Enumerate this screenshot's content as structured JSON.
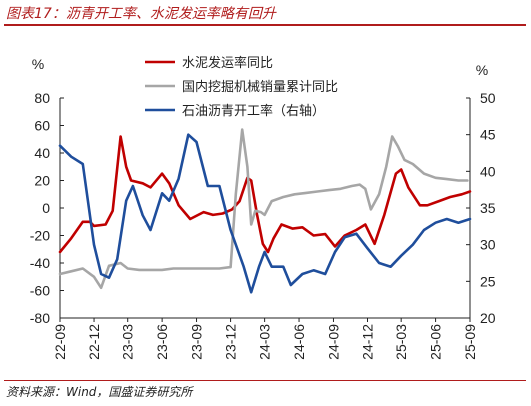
{
  "title": "图表17：沥青开工率、水泥发运率略有回升",
  "source": "资料来源：Wind，国盛证券研究所",
  "chart_data": {
    "type": "line",
    "left_axis": {
      "unit": "%",
      "ylim": [
        -80,
        80
      ],
      "ticks": [
        -80,
        -60,
        -40,
        -20,
        0,
        20,
        40,
        60,
        80
      ]
    },
    "right_axis": {
      "unit": "%",
      "ylim": [
        20,
        50
      ],
      "ticks": [
        20,
        25,
        30,
        35,
        40,
        45,
        50
      ]
    },
    "x_range": [
      "2022-09-01",
      "2025-09-01"
    ],
    "x_ticks": [
      "22-09",
      "22-12",
      "23-03",
      "23-06",
      "23-09",
      "23-12",
      "24-03",
      "24-06",
      "24-09",
      "24-12",
      "25-03",
      "25-06",
      "25-09"
    ],
    "legend": {
      "position": "top-center"
    },
    "grid": false,
    "series": [
      {
        "name": "水泥发运率同比",
        "color": "#c00000",
        "axis": "left",
        "points": [
          [
            "2022-09-01",
            -32
          ],
          [
            "2022-10-01",
            -22
          ],
          [
            "2022-11-01",
            -10
          ],
          [
            "2022-11-20",
            -10
          ],
          [
            "2022-12-01",
            -13
          ],
          [
            "2023-01-01",
            -12
          ],
          [
            "2023-01-20",
            -2
          ],
          [
            "2023-02-10",
            52
          ],
          [
            "2023-02-25",
            30
          ],
          [
            "2023-03-10",
            20
          ],
          [
            "2023-04-10",
            18
          ],
          [
            "2023-05-01",
            15
          ],
          [
            "2023-06-01",
            25
          ],
          [
            "2023-06-20",
            18
          ],
          [
            "2023-07-15",
            2
          ],
          [
            "2023-08-15",
            -8
          ],
          [
            "2023-09-20",
            -3
          ],
          [
            "2023-10-15",
            -5
          ],
          [
            "2023-11-10",
            -4
          ],
          [
            "2023-12-05",
            -1
          ],
          [
            "2023-12-25",
            5
          ],
          [
            "2024-01-15",
            22
          ],
          [
            "2024-01-25",
            20
          ],
          [
            "2024-02-10",
            -5
          ],
          [
            "2024-02-25",
            -26
          ],
          [
            "2024-03-10",
            -32
          ],
          [
            "2024-03-25",
            -22
          ],
          [
            "2024-04-15",
            -12
          ],
          [
            "2024-05-15",
            -15
          ],
          [
            "2024-06-10",
            -14
          ],
          [
            "2024-07-10",
            -20
          ],
          [
            "2024-08-10",
            -19
          ],
          [
            "2024-09-05",
            -28
          ],
          [
            "2024-10-01",
            -20
          ],
          [
            "2024-11-01",
            -16
          ],
          [
            "2024-11-25",
            -12
          ],
          [
            "2024-12-20",
            -26
          ],
          [
            "2025-01-15",
            -5
          ],
          [
            "2025-02-15",
            25
          ],
          [
            "2025-03-01",
            28
          ],
          [
            "2025-03-20",
            15
          ],
          [
            "2025-04-20",
            2
          ],
          [
            "2025-05-10",
            2
          ],
          [
            "2025-06-10",
            5
          ],
          [
            "2025-07-10",
            8
          ],
          [
            "2025-08-10",
            10
          ],
          [
            "2025-09-01",
            12
          ]
        ]
      },
      {
        "name": "国内挖掘机械销量累计同比",
        "color": "#a6a6a6",
        "axis": "left",
        "points": [
          [
            "2022-09-01",
            -48
          ],
          [
            "2022-10-01",
            -46
          ],
          [
            "2022-11-01",
            -44
          ],
          [
            "2022-12-01",
            -50
          ],
          [
            "2022-12-20",
            -58
          ],
          [
            "2023-01-10",
            -42
          ],
          [
            "2023-02-10",
            -40
          ],
          [
            "2023-03-01",
            -44
          ],
          [
            "2023-04-01",
            -45
          ],
          [
            "2023-05-01",
            -45
          ],
          [
            "2023-06-01",
            -45
          ],
          [
            "2023-07-01",
            -44
          ],
          [
            "2023-08-01",
            -44
          ],
          [
            "2023-09-01",
            -44
          ],
          [
            "2023-10-01",
            -44
          ],
          [
            "2023-11-01",
            -44
          ],
          [
            "2023-12-01",
            -43
          ],
          [
            "2023-12-15",
            10
          ],
          [
            "2024-01-01",
            57
          ],
          [
            "2024-01-15",
            30
          ],
          [
            "2024-01-25",
            -12
          ],
          [
            "2024-02-05",
            -2
          ],
          [
            "2024-02-20",
            -3
          ],
          [
            "2024-03-01",
            -5
          ],
          [
            "2024-03-20",
            5
          ],
          [
            "2024-04-20",
            8
          ],
          [
            "2024-05-20",
            10
          ],
          [
            "2024-06-20",
            11
          ],
          [
            "2024-07-20",
            12
          ],
          [
            "2024-08-20",
            13
          ],
          [
            "2024-09-20",
            14
          ],
          [
            "2024-10-20",
            16
          ],
          [
            "2024-11-10",
            17
          ],
          [
            "2024-11-25",
            14
          ],
          [
            "2024-12-10",
            -1
          ],
          [
            "2025-01-01",
            10
          ],
          [
            "2025-01-20",
            30
          ],
          [
            "2025-02-05",
            52
          ],
          [
            "2025-02-20",
            45
          ],
          [
            "2025-03-10",
            35
          ],
          [
            "2025-04-01",
            32
          ],
          [
            "2025-05-01",
            25
          ],
          [
            "2025-06-01",
            22
          ],
          [
            "2025-07-01",
            21
          ],
          [
            "2025-08-01",
            20
          ],
          [
            "2025-08-25",
            20
          ]
        ]
      },
      {
        "name": "石油沥青开工率（右轴）",
        "color": "#1f4e9c",
        "axis": "right",
        "points": [
          [
            "2022-09-01",
            43.5
          ],
          [
            "2022-10-01",
            42
          ],
          [
            "2022-11-01",
            41
          ],
          [
            "2022-12-01",
            30
          ],
          [
            "2022-12-20",
            26
          ],
          [
            "2023-01-10",
            25.5
          ],
          [
            "2023-02-01",
            28
          ],
          [
            "2023-02-25",
            36
          ],
          [
            "2023-03-15",
            38
          ],
          [
            "2023-04-10",
            34
          ],
          [
            "2023-05-01",
            32
          ],
          [
            "2023-06-01",
            37
          ],
          [
            "2023-06-20",
            36
          ],
          [
            "2023-07-15",
            39
          ],
          [
            "2023-08-10",
            45
          ],
          [
            "2023-09-01",
            44
          ],
          [
            "2023-10-01",
            38
          ],
          [
            "2023-11-01",
            38
          ],
          [
            "2023-12-01",
            32
          ],
          [
            "2024-01-05",
            27
          ],
          [
            "2024-01-25",
            23.5
          ],
          [
            "2024-02-15",
            27
          ],
          [
            "2024-03-01",
            29
          ],
          [
            "2024-03-20",
            27
          ],
          [
            "2024-04-20",
            27
          ],
          [
            "2024-05-10",
            24.5
          ],
          [
            "2024-06-10",
            26
          ],
          [
            "2024-07-10",
            26.5
          ],
          [
            "2024-08-10",
            26
          ],
          [
            "2024-09-05",
            29
          ],
          [
            "2024-10-01",
            31
          ],
          [
            "2024-11-01",
            31.5
          ],
          [
            "2024-12-01",
            29.5
          ],
          [
            "2025-01-01",
            27.5
          ],
          [
            "2025-02-01",
            27
          ],
          [
            "2025-03-01",
            28.5
          ],
          [
            "2025-04-01",
            30
          ],
          [
            "2025-05-01",
            32
          ],
          [
            "2025-06-01",
            33
          ],
          [
            "2025-07-01",
            33.5
          ],
          [
            "2025-08-01",
            33
          ],
          [
            "2025-09-01",
            33.5
          ]
        ]
      }
    ]
  }
}
